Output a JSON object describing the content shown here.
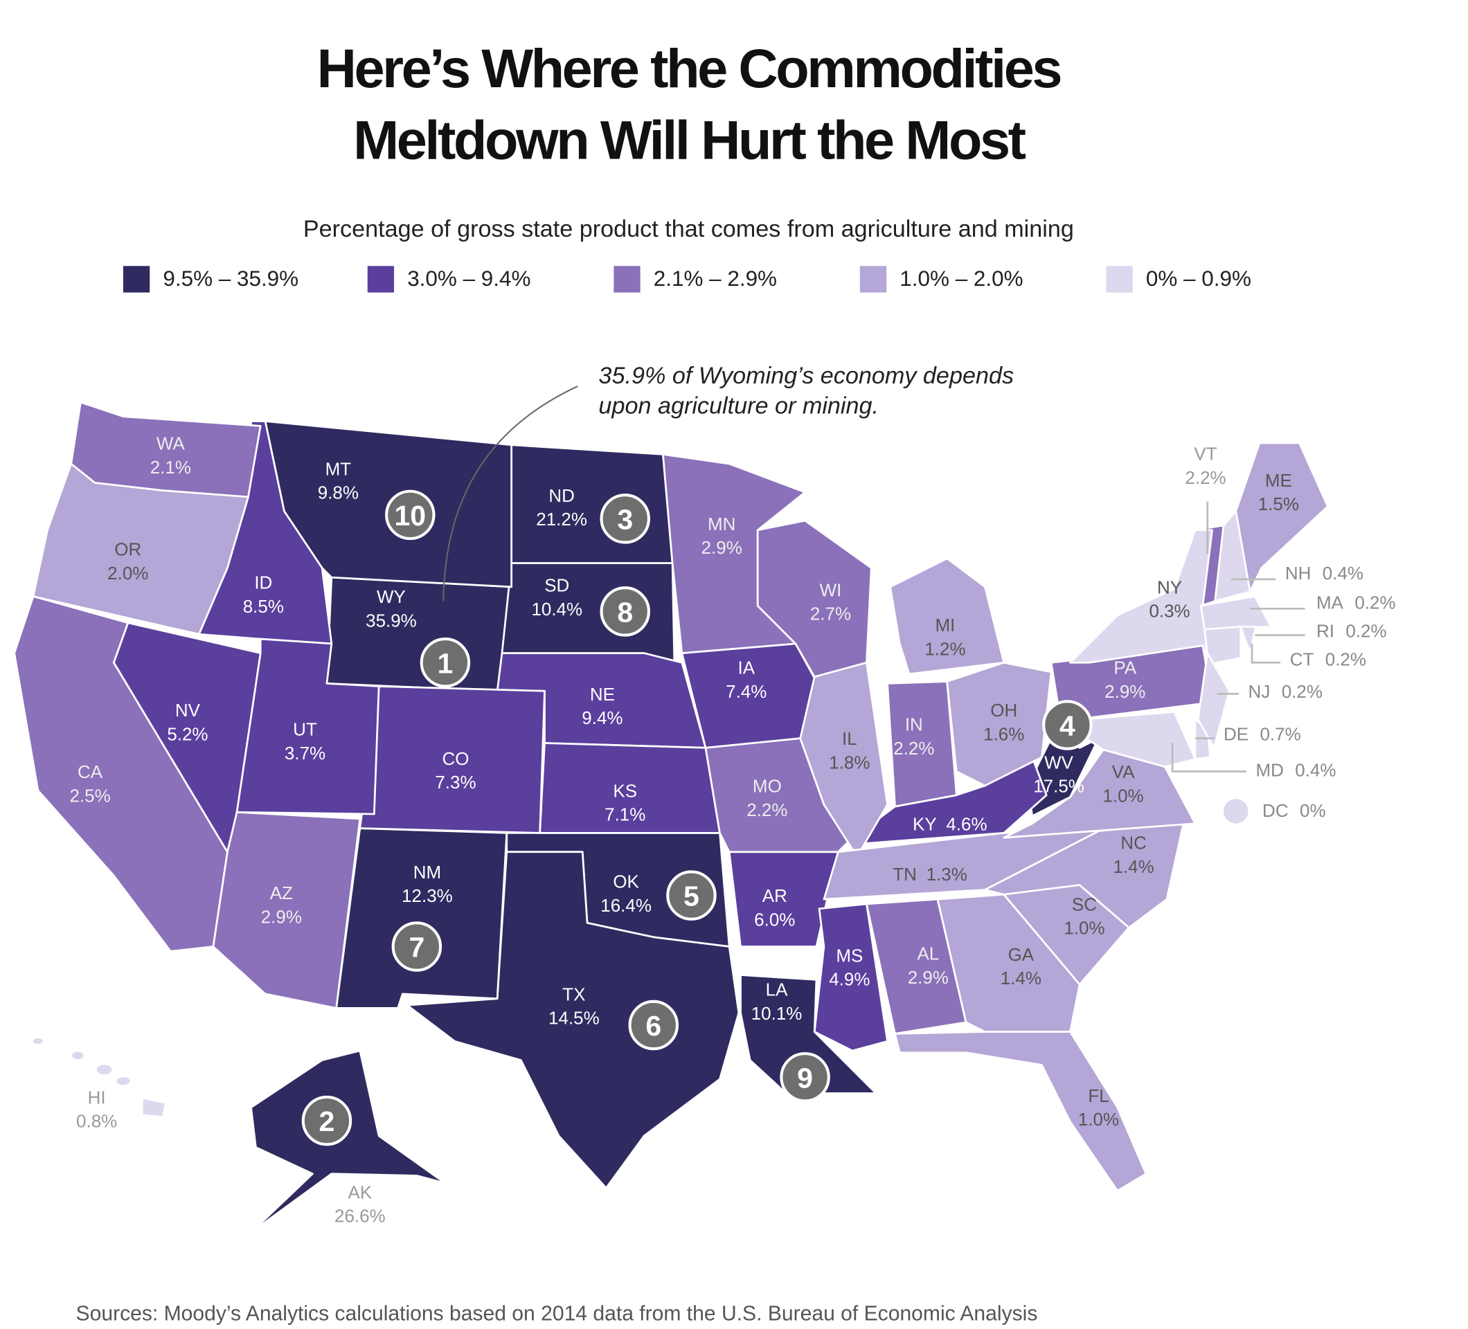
{
  "title_line1": "Here’s Where the Commodities",
  "title_line2": "Meltdown Will Hurt the Most",
  "subtitle": "Percentage of gross state product that comes from agriculture and mining",
  "legend": [
    {
      "label": "9.5% – 35.9%",
      "color": "#2f2b60"
    },
    {
      "label": "3.0% – 9.4%",
      "color": "#5a3f9d"
    },
    {
      "label": "2.1% – 2.9%",
      "color": "#8a71b9"
    },
    {
      "label": "1.0% – 2.0%",
      "color": "#b4a6d6"
    },
    {
      "label": "0% – 0.9%",
      "color": "#ddd8ee"
    }
  ],
  "callout": {
    "line1": "35.9% of Wyoming’s economy depends",
    "line2": "upon agriculture or mining."
  },
  "source": "Sources: Moody’s Analytics calculations based on 2014 data from the U.S. Bureau of Economic Analysis",
  "chart_data": {
    "type": "choropleth",
    "title": "Here’s Where the Commodities Meltdown Will Hurt the Most",
    "subtitle": "Percentage of gross state product that comes from agriculture and mining",
    "unit": "%",
    "states": [
      {
        "abbr": "WY",
        "value": "35.9%",
        "rank": 1
      },
      {
        "abbr": "AK",
        "value": "26.6%",
        "rank": 2
      },
      {
        "abbr": "ND",
        "value": "21.2%",
        "rank": 3
      },
      {
        "abbr": "WV",
        "value": "17.5%",
        "rank": 4
      },
      {
        "abbr": "OK",
        "value": "16.4%",
        "rank": 5
      },
      {
        "abbr": "TX",
        "value": "14.5%",
        "rank": 6
      },
      {
        "abbr": "NM",
        "value": "12.3%",
        "rank": 7
      },
      {
        "abbr": "SD",
        "value": "10.4%",
        "rank": 8
      },
      {
        "abbr": "LA",
        "value": "10.1%",
        "rank": 9
      },
      {
        "abbr": "MT",
        "value": "9.8%",
        "rank": 10
      },
      {
        "abbr": "NE",
        "value": "9.4%"
      },
      {
        "abbr": "ID",
        "value": "8.5%"
      },
      {
        "abbr": "IA",
        "value": "7.4%"
      },
      {
        "abbr": "CO",
        "value": "7.3%"
      },
      {
        "abbr": "KS",
        "value": "7.1%"
      },
      {
        "abbr": "AR",
        "value": "6.0%"
      },
      {
        "abbr": "NV",
        "value": "5.2%"
      },
      {
        "abbr": "MS",
        "value": "4.9%"
      },
      {
        "abbr": "KY",
        "value": "4.6%"
      },
      {
        "abbr": "UT",
        "value": "3.7%"
      },
      {
        "abbr": "MN",
        "value": "2.9%"
      },
      {
        "abbr": "AZ",
        "value": "2.9%"
      },
      {
        "abbr": "AL",
        "value": "2.9%"
      },
      {
        "abbr": "PA",
        "value": "2.9%"
      },
      {
        "abbr": "WI",
        "value": "2.7%"
      },
      {
        "abbr": "CA",
        "value": "2.5%"
      },
      {
        "abbr": "VT",
        "value": "2.2%"
      },
      {
        "abbr": "IN",
        "value": "2.2%"
      },
      {
        "abbr": "MO",
        "value": "2.2%"
      },
      {
        "abbr": "WA",
        "value": "2.1%"
      },
      {
        "abbr": "OR",
        "value": "2.0%"
      },
      {
        "abbr": "IL",
        "value": "1.8%"
      },
      {
        "abbr": "OH",
        "value": "1.6%"
      },
      {
        "abbr": "ME",
        "value": "1.5%"
      },
      {
        "abbr": "NC",
        "value": "1.4%"
      },
      {
        "abbr": "GA",
        "value": "1.4%"
      },
      {
        "abbr": "TN",
        "value": "1.3%"
      },
      {
        "abbr": "MI",
        "value": "1.2%"
      },
      {
        "abbr": "VA",
        "value": "1.0%"
      },
      {
        "abbr": "SC",
        "value": "1.0%"
      },
      {
        "abbr": "FL",
        "value": "1.0%"
      },
      {
        "abbr": "HI",
        "value": "0.8%"
      },
      {
        "abbr": "DE",
        "value": "0.7%"
      },
      {
        "abbr": "NH",
        "value": "0.4%"
      },
      {
        "abbr": "MD",
        "value": "0.4%"
      },
      {
        "abbr": "NY",
        "value": "0.3%"
      },
      {
        "abbr": "MA",
        "value": "0.2%"
      },
      {
        "abbr": "RI",
        "value": "0.2%"
      },
      {
        "abbr": "CT",
        "value": "0.2%"
      },
      {
        "abbr": "NJ",
        "value": "0.2%"
      },
      {
        "abbr": "DC",
        "value": "0%"
      }
    ]
  }
}
